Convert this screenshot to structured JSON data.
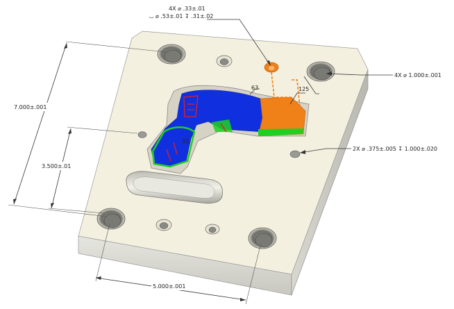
{
  "callouts": {
    "tapped_holes": {
      "line1": "4X ⌀ .33±.01",
      "line2": "⌴ ⌀ .53±.01 ↧ .31±.02"
    },
    "large_holes": "4X ⌀ 1.000±.001",
    "pin_holes": "2X ⌀ .375±.005 ↧ 1.000±.020",
    "surface_63": "63",
    "surface_125": "125",
    "surface_32": "32"
  },
  "dimensions": {
    "height_overall": "7.000±.001",
    "height_half": "3.500±.01",
    "width_holes": "5.000±.001"
  },
  "colors": {
    "plate_top": "#f4f0e0",
    "plate_front": "#dcdcd4",
    "plate_side": "#c9c9c0",
    "cavity_blue": "#1030e0",
    "cavity_orange": "#f08018",
    "cavity_green": "#20d020",
    "cavity_red": "#e02020"
  }
}
